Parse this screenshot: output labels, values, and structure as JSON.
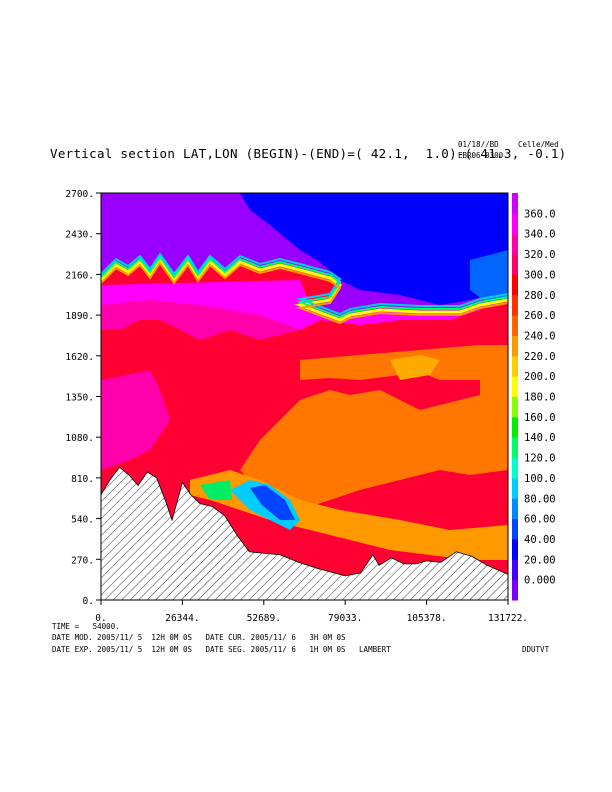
{
  "header": {
    "title": "Vertical section LAT,LON (BEGIN)-(END)=( 42.1,  1.0)-( 41.3, -0.1)",
    "date_code": "01/18//BD",
    "run": "EBR06 0300",
    "units": "Celle/Med"
  },
  "footer": {
    "time": "TIME =   54000.",
    "line1": "DATE MOD. 2005/11/ 5  12H 0M 0S   DATE CUR. 2005/11/ 6   3H 0M 0S",
    "line2": "DATE EXP. 2005/11/ 5  12H 0M 0S   DATE SEG. 2005/11/ 6   1H 0M 0S   LAMBERT",
    "tag": "DDUTVT"
  },
  "chart_data": {
    "type": "heatmap",
    "title": "Vertical section LAT,LON (BEGIN)-(END)=( 42.1,  1.0)-( 41.3, -0.1)",
    "xlim": [
      0,
      131722
    ],
    "ylim": [
      0,
      2700
    ],
    "x_ticks": [
      0,
      26344,
      52689,
      79033,
      105378,
      131722
    ],
    "x_tick_labels": [
      "0.",
      "26344.",
      "52689.",
      "79033.",
      "105378.",
      "131722."
    ],
    "y_ticks": [
      0,
      270,
      540,
      810,
      1080,
      1350,
      1620,
      1890,
      2160,
      2430,
      2700
    ],
    "y_tick_labels": [
      "0.",
      "270.",
      "540.",
      "810.",
      "1080.",
      "1350.",
      "1620.",
      "1890.",
      "2160.",
      "2430.",
      "2700."
    ],
    "colorbar": {
      "levels": [
        "0.000",
        "20.00",
        "40.00",
        "60.00",
        "80.00",
        "100.0",
        "120.0",
        "140.0",
        "160.0",
        "180.0",
        "200.0",
        "220.0",
        "240.0",
        "260.0",
        "280.0",
        "300.0",
        "320.0",
        "340.0",
        "360.0"
      ],
      "colors": [
        "#7a00ff",
        "#4400ff",
        "#0000ff",
        "#0044ff",
        "#0088ff",
        "#00ccff",
        "#00ffcc",
        "#00ff66",
        "#00ee00",
        "#88ff00",
        "#ffff00",
        "#ffcc00",
        "#ff9900",
        "#ff6600",
        "#ff3300",
        "#ff0000",
        "#ff0066",
        "#ff00aa",
        "#ff00ff",
        "#cc00ff"
      ]
    },
    "terrain": {
      "x": [
        0,
        3000,
        6000,
        9000,
        12000,
        15000,
        18000,
        21000,
        23000,
        26344,
        29000,
        32000,
        36000,
        40000,
        44000,
        48000,
        52689,
        58000,
        64000,
        70000,
        79033,
        84000,
        88000,
        90000,
        94000,
        98000,
        102000,
        105378,
        110000,
        115000,
        120000,
        125000,
        131722
      ],
      "y": [
        700,
        800,
        880,
        830,
        760,
        850,
        810,
        650,
        530,
        780,
        700,
        640,
        620,
        560,
        430,
        320,
        310,
        300,
        250,
        210,
        160,
        180,
        300,
        230,
        280,
        240,
        240,
        260,
        250,
        320,
        290,
        230,
        170
      ]
    }
  }
}
